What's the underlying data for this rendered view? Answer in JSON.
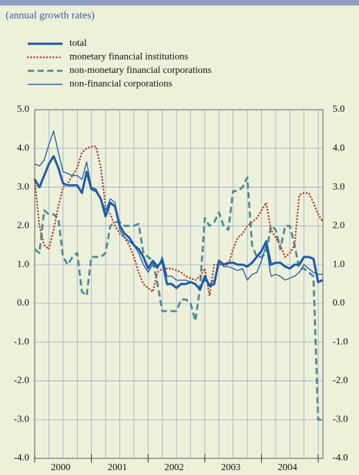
{
  "chart_data": {
    "type": "line",
    "subtitle": "(annual growth rates)",
    "categories": [
      null,
      null,
      null,
      null,
      null,
      "2000",
      null,
      null,
      null,
      null,
      null,
      null,
      null,
      null,
      null,
      null,
      null,
      "2001",
      null,
      null,
      null,
      null,
      null,
      null,
      null,
      null,
      null,
      null,
      null,
      "2002",
      null,
      null,
      null,
      null,
      null,
      null,
      null,
      null,
      null,
      null,
      null,
      "2003",
      null,
      null,
      null,
      null,
      null,
      null,
      null,
      null,
      null,
      null,
      null,
      "2004",
      null,
      null,
      null,
      null,
      null,
      null,
      null,
      null
    ],
    "series": [
      {
        "name": "total",
        "color": "#1d5ca8",
        "style": "thick",
        "values": [
          3.2,
          3.0,
          3.3,
          3.6,
          3.8,
          3.5,
          3.1,
          3.05,
          3.05,
          3.05,
          2.85,
          3.4,
          2.95,
          2.9,
          2.7,
          2.25,
          2.6,
          2.5,
          2.0,
          1.8,
          1.7,
          1.5,
          1.4,
          1.2,
          0.9,
          1.1,
          0.95,
          1.1,
          0.5,
          0.5,
          0.4,
          0.5,
          0.5,
          0.55,
          0.5,
          0.35,
          0.7,
          0.45,
          0.5,
          1.1,
          1.0,
          1.05,
          1.05,
          1.0,
          1.0,
          0.95,
          1.05,
          1.2,
          1.35,
          1.6,
          1.0,
          1.05,
          1.05,
          0.95,
          0.9,
          1.0,
          1.0,
          1.2,
          1.2,
          1.15,
          0.55,
          0.6
        ]
      },
      {
        "name": "monetary financial institutions",
        "color": "#b23a2e",
        "style": "dotted",
        "values": [
          3.2,
          2.0,
          1.5,
          1.4,
          1.9,
          2.5,
          3.0,
          3.1,
          3.3,
          3.5,
          3.9,
          4.0,
          4.05,
          4.05,
          3.5,
          2.5,
          2.3,
          2.0,
          1.8,
          1.7,
          1.5,
          1.2,
          0.8,
          0.5,
          0.4,
          0.3,
          0.8,
          0.9,
          0.9,
          0.9,
          0.85,
          0.8,
          0.7,
          0.65,
          0.6,
          0.7,
          0.9,
          0.2,
          1.0,
          1.0,
          1.0,
          1.0,
          1.4,
          1.7,
          1.8,
          2.0,
          2.1,
          2.2,
          2.4,
          2.6,
          1.9,
          1.7,
          1.5,
          1.2,
          1.3,
          1.5,
          2.8,
          2.85,
          2.85,
          2.6,
          2.3,
          2.1
        ]
      },
      {
        "name": "non-monetary financial corporations",
        "color": "#4f8c98",
        "style": "dashed",
        "values": [
          1.4,
          1.3,
          2.4,
          2.3,
          2.3,
          2.2,
          1.2,
          1.0,
          1.2,
          1.3,
          0.3,
          0.2,
          1.2,
          1.2,
          1.2,
          1.3,
          2.0,
          2.1,
          2.1,
          2.0,
          2.0,
          2.0,
          2.05,
          1.3,
          1.2,
          1.1,
          0.5,
          -0.2,
          -0.2,
          -0.2,
          -0.2,
          0.1,
          0.1,
          0.0,
          -0.45,
          0.4,
          2.2,
          2.0,
          2.1,
          2.35,
          2.0,
          1.9,
          2.9,
          2.9,
          3.0,
          3.25,
          1.5,
          1.2,
          1.2,
          1.3,
          2.0,
          1.9,
          1.4,
          2.0,
          2.0,
          1.5,
          0.9,
          0.9,
          0.8,
          0.7,
          -3.0,
          -3.0
        ]
      },
      {
        "name": "non-financial corporations",
        "color": "#1d5ca8",
        "style": "thin",
        "values": [
          3.6,
          3.55,
          3.7,
          4.1,
          4.45,
          3.9,
          3.4,
          3.35,
          3.3,
          3.3,
          3.2,
          3.65,
          3.0,
          2.95,
          2.7,
          2.4,
          2.7,
          2.6,
          1.9,
          1.7,
          1.6,
          1.5,
          1.3,
          1.0,
          0.8,
          1.0,
          0.9,
          1.2,
          0.7,
          0.7,
          0.6,
          0.6,
          0.6,
          0.55,
          0.5,
          0.4,
          0.6,
          0.5,
          0.6,
          1.1,
          0.95,
          0.95,
          0.9,
          0.85,
          0.9,
          0.6,
          0.75,
          0.8,
          1.1,
          1.5,
          0.7,
          0.75,
          0.7,
          0.6,
          0.65,
          0.7,
          0.8,
          1.0,
          0.9,
          0.8,
          0.75,
          0.75
        ]
      }
    ],
    "ylim": [
      -4,
      5
    ],
    "yticks": [
      {
        "value": -4,
        "label": "-4.0"
      },
      {
        "value": -3,
        "label": "-3.0"
      },
      {
        "value": -2,
        "label": "-2.0"
      },
      {
        "value": -1,
        "label": "-1.0"
      },
      {
        "value": 0,
        "label": "0.0"
      },
      {
        "value": 1,
        "label": "1.0"
      },
      {
        "value": 2,
        "label": "2.0"
      },
      {
        "value": 3,
        "label": "3.0"
      },
      {
        "value": 4,
        "label": "4.0"
      },
      {
        "value": 5,
        "label": "5.0"
      }
    ],
    "grid": true
  }
}
